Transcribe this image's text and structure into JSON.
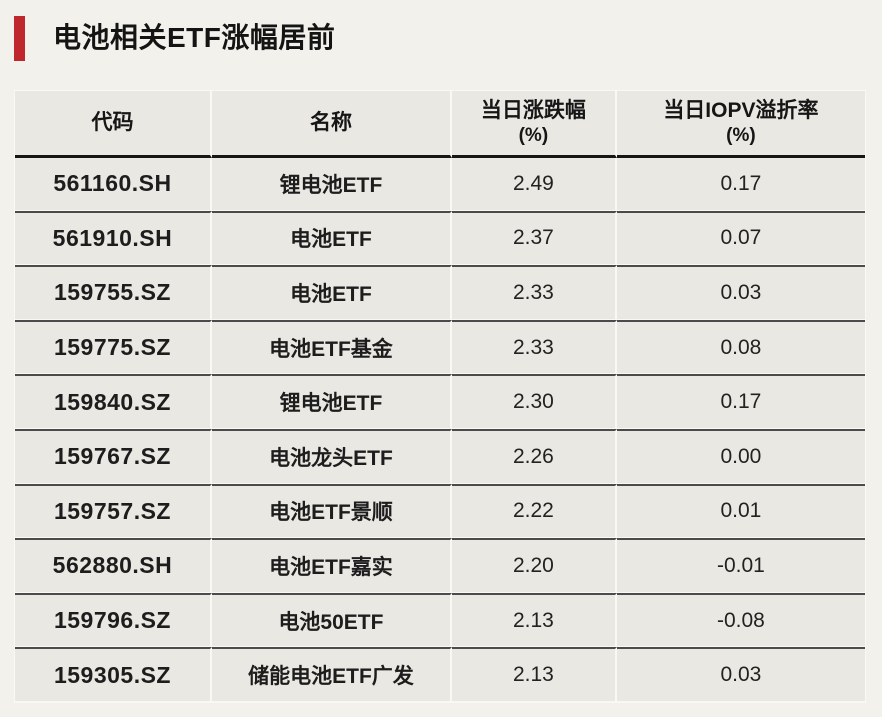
{
  "title": "电池相关ETF涨幅居前",
  "colors": {
    "accent_red": "#c0272d",
    "page_background": "#f3f1ec",
    "cell_background": "#eae8e3",
    "text": "#1d1d1d"
  },
  "table": {
    "columns": [
      {
        "key": "code",
        "label": "代码"
      },
      {
        "key": "name",
        "label": "名称"
      },
      {
        "key": "change",
        "label": "当日涨跌幅",
        "label_line2": "(%)"
      },
      {
        "key": "iopv",
        "label": "当日IOPV溢折率",
        "label_line2": "(%)"
      }
    ],
    "rows": [
      {
        "code": "561160.SH",
        "name": "锂电池ETF",
        "change": "2.49",
        "iopv": "0.17"
      },
      {
        "code": "561910.SH",
        "name": "电池ETF",
        "change": "2.37",
        "iopv": "0.07"
      },
      {
        "code": "159755.SZ",
        "name": "电池ETF",
        "change": "2.33",
        "iopv": "0.03"
      },
      {
        "code": "159775.SZ",
        "name": "电池ETF基金",
        "change": "2.33",
        "iopv": "0.08"
      },
      {
        "code": "159840.SZ",
        "name": "锂电池ETF",
        "change": "2.30",
        "iopv": "0.17"
      },
      {
        "code": "159767.SZ",
        "name": "电池龙头ETF",
        "change": "2.26",
        "iopv": "0.00"
      },
      {
        "code": "159757.SZ",
        "name": "电池ETF景顺",
        "change": "2.22",
        "iopv": "0.01"
      },
      {
        "code": "562880.SH",
        "name": "电池ETF嘉实",
        "change": "2.20",
        "iopv": "-0.01"
      },
      {
        "code": "159796.SZ",
        "name": "电池50ETF",
        "change": "2.13",
        "iopv": "-0.08"
      },
      {
        "code": "159305.SZ",
        "name": "储能电池ETF广发",
        "change": "2.13",
        "iopv": "0.03"
      }
    ]
  },
  "chart_data": {
    "type": "table",
    "title": "电池相关ETF涨幅居前",
    "columns": [
      "代码",
      "名称",
      "当日涨跌幅(%)",
      "当日IOPV溢折率(%)"
    ],
    "rows": [
      [
        "561160.SH",
        "锂电池ETF",
        2.49,
        0.17
      ],
      [
        "561910.SH",
        "电池ETF",
        2.37,
        0.07
      ],
      [
        "159755.SZ",
        "电池ETF",
        2.33,
        0.03
      ],
      [
        "159775.SZ",
        "电池ETF基金",
        2.33,
        0.08
      ],
      [
        "159840.SZ",
        "锂电池ETF",
        2.3,
        0.17
      ],
      [
        "159767.SZ",
        "电池龙头ETF",
        2.26,
        0.0
      ],
      [
        "159757.SZ",
        "电池ETF景顺",
        2.22,
        0.01
      ],
      [
        "562880.SH",
        "电池ETF嘉实",
        2.2,
        -0.01
      ],
      [
        "159796.SZ",
        "电池50ETF",
        2.13,
        -0.08
      ],
      [
        "159305.SZ",
        "储能电池ETF广发",
        2.13,
        0.03
      ]
    ]
  }
}
